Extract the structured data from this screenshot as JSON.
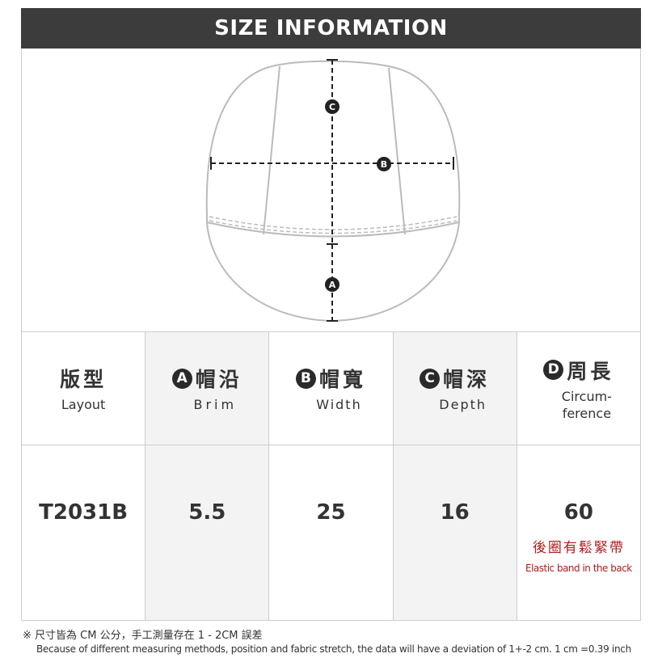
{
  "title": "SIZE INFORMATION",
  "markers": {
    "a": "A",
    "b": "B",
    "c": "C",
    "d": "D"
  },
  "headers": [
    {
      "zh": "版型",
      "en": "Layout"
    },
    {
      "zh": "帽沿",
      "en": "Brim",
      "marker": "A"
    },
    {
      "zh": "帽寬",
      "en": "Width",
      "marker": "B"
    },
    {
      "zh": "帽深",
      "en": "Depth",
      "marker": "C"
    },
    {
      "zh": "周長",
      "en": "Circum-\nference",
      "marker": "D"
    }
  ],
  "row": {
    "layout": "T2031B",
    "brim": "5.5",
    "width": "25",
    "depth": "16",
    "circumference": "60",
    "note_zh": "後圈有鬆緊帶",
    "note_en": "Elastic band in the back"
  },
  "notes": {
    "zh": "※ 尺寸皆為 CM 公分，手工測量存在 1 - 2CM 誤差",
    "en": "Because of different measuring methods, position and fabric stretch, the data will have a deviation of 1+-2 cm. 1 cm =0.39 inch"
  },
  "colors": {
    "banner": "#3c3c3c",
    "note_red": "#b01c1c",
    "shade": "#f3f3f3"
  }
}
